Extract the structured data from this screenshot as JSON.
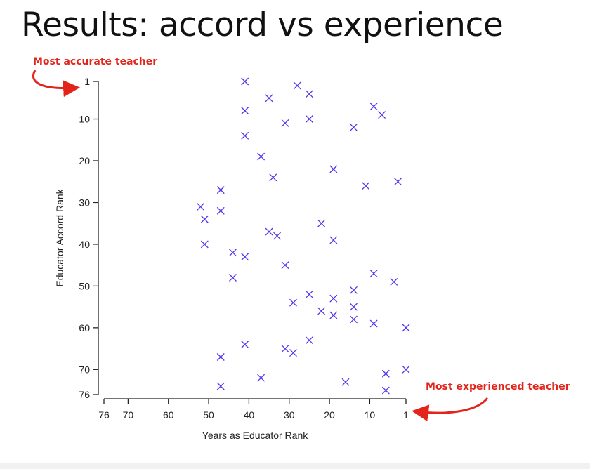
{
  "slide": {
    "title": "Results: accord vs experience",
    "callout_top": "Most accurate teacher",
    "callout_bottom": "Most experienced teacher"
  },
  "colors": {
    "marker": "#5533ee",
    "callout": "#e3241b",
    "axis": "#222222"
  },
  "chart_data": {
    "type": "scatter",
    "xlabel": "Years as Educator Rank",
    "ylabel": "Educator Accord Rank",
    "xlim": [
      76,
      1
    ],
    "ylim": [
      1,
      76
    ],
    "x_reversed": true,
    "y_reversed": true,
    "xticks": [
      76,
      70,
      60,
      50,
      40,
      30,
      20,
      10,
      1
    ],
    "yticks": [
      1,
      10,
      20,
      30,
      40,
      50,
      60,
      70,
      76
    ],
    "marker": "x",
    "grid": false,
    "series": [
      {
        "points": [
          [
            41,
            1
          ],
          [
            28,
            2
          ],
          [
            25,
            4
          ],
          [
            35,
            5
          ],
          [
            9,
            7
          ],
          [
            7,
            9
          ],
          [
            41,
            8
          ],
          [
            31,
            11
          ],
          [
            25,
            10
          ],
          [
            14,
            12
          ],
          [
            41,
            14
          ],
          [
            37,
            19
          ],
          [
            19,
            22
          ],
          [
            34,
            24
          ],
          [
            11,
            26
          ],
          [
            3,
            25
          ],
          [
            47,
            27
          ],
          [
            52,
            31
          ],
          [
            47,
            32
          ],
          [
            51,
            34
          ],
          [
            22,
            35
          ],
          [
            35,
            37
          ],
          [
            33,
            38
          ],
          [
            19,
            39
          ],
          [
            51,
            40
          ],
          [
            44,
            42
          ],
          [
            41,
            43
          ],
          [
            31,
            45
          ],
          [
            9,
            47
          ],
          [
            44,
            48
          ],
          [
            4,
            49
          ],
          [
            14,
            51
          ],
          [
            25,
            52
          ],
          [
            19,
            53
          ],
          [
            29,
            54
          ],
          [
            14,
            55
          ],
          [
            22,
            56
          ],
          [
            19,
            57
          ],
          [
            14,
            58
          ],
          [
            9,
            59
          ],
          [
            1,
            60
          ],
          [
            25,
            63
          ],
          [
            41,
            64
          ],
          [
            31,
            65
          ],
          [
            29,
            66
          ],
          [
            47,
            67
          ],
          [
            1,
            70
          ],
          [
            6,
            71
          ],
          [
            37,
            72
          ],
          [
            16,
            73
          ],
          [
            47,
            74
          ],
          [
            6,
            75
          ]
        ]
      }
    ]
  }
}
